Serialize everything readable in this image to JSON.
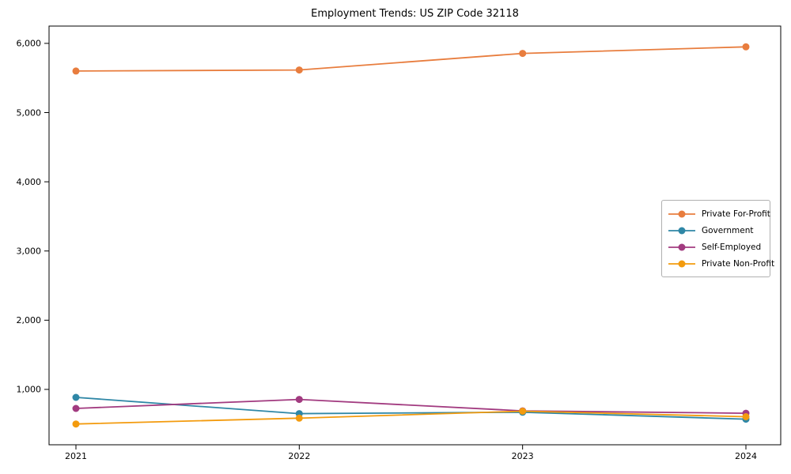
{
  "chart_data": {
    "type": "line",
    "title": "Employment Trends: US ZIP Code 32118",
    "x_labels": [
      "2021",
      "2022",
      "2023",
      "2024"
    ],
    "x_values": [
      2021,
      2022,
      2023,
      2024
    ],
    "series": [
      {
        "name": "Private For-Profit",
        "color": "#e87d3e",
        "values": [
          5600,
          5615,
          5855,
          5950
        ]
      },
      {
        "name": "Government",
        "color": "#2f87a6",
        "values": [
          885,
          650,
          670,
          570
        ]
      },
      {
        "name": "Self-Employed",
        "color": "#a23b80",
        "values": [
          725,
          855,
          690,
          655
        ]
      },
      {
        "name": "Private Non-Profit",
        "color": "#f39b0e",
        "values": [
          500,
          585,
          685,
          605
        ]
      }
    ],
    "ylim": [
      200,
      6250
    ],
    "yticks": [
      {
        "value": 1000,
        "label": "1,000"
      },
      {
        "value": 2000,
        "label": "2,000"
      },
      {
        "value": 3000,
        "label": "3,000"
      },
      {
        "value": 4000,
        "label": "4,000"
      },
      {
        "value": 5000,
        "label": "5,000"
      },
      {
        "value": 6000,
        "label": "6,000"
      }
    ],
    "grid": false,
    "legend_position": "center right",
    "axis_color": "#000000",
    "background_color": "#ffffff",
    "marker": "circle",
    "line_width": 1.8,
    "marker_radius": 4.5
  }
}
